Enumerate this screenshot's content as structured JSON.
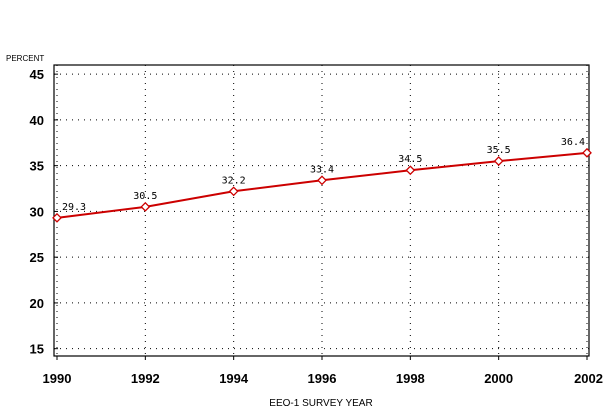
{
  "chart_data": {
    "type": "line",
    "x": [
      1990,
      1992,
      1994,
      1996,
      1998,
      2000,
      2002
    ],
    "series": [
      {
        "values": [
          29.3,
          30.5,
          32.2,
          33.4,
          34.5,
          35.5,
          36.4
        ]
      }
    ],
    "data_labels": [
      "29.3",
      "30.5",
      "32.2",
      "33.4",
      "34.5",
      "35.5",
      "36.4"
    ],
    "xlabel": "EEO-1 SURVEY YEAR",
    "ylabel": "PERCENT",
    "x_ticks": [
      "1990",
      "1992",
      "1994",
      "1996",
      "1998",
      "2000",
      "2002"
    ],
    "y_ticks": [
      "15",
      "20",
      "25",
      "30",
      "35",
      "40",
      "45"
    ],
    "xlim": [
      1990,
      2002
    ],
    "ylim": [
      14.2,
      46
    ],
    "grid": "dotted",
    "legend": "none",
    "line_color": "#cc0000",
    "marker": "diamond"
  }
}
